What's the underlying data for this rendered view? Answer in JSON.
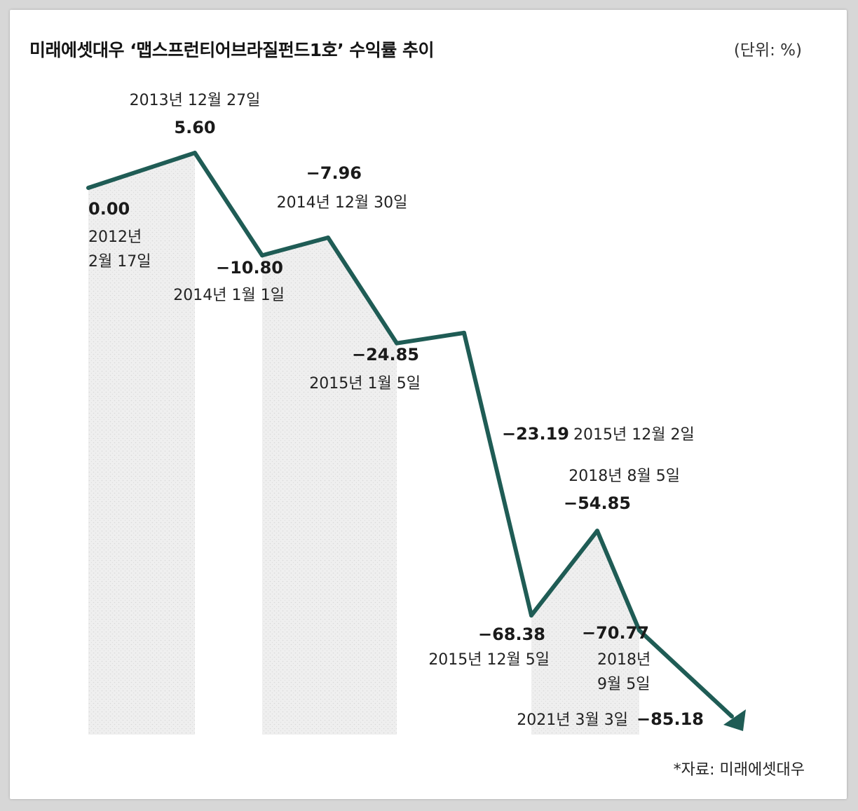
{
  "title": "미래에셋대우 ‘맵스프런티어브라질펀드1호’ 수익률 추이",
  "unit": "(단위: %)",
  "source": "*자료: 미래에셋대우",
  "colors": {
    "line": "#1f5c55",
    "fill": "#eeeeee"
  },
  "chart_data": {
    "type": "line",
    "ylabel": "",
    "points": [
      {
        "date": "2012년 2월 17일",
        "value": 0.0,
        "value_label": "0.00"
      },
      {
        "date": "2013년 12월 27일",
        "value": 5.6,
        "value_label": "5.60"
      },
      {
        "date": "2014년 1월 1일",
        "value": -10.8,
        "value_label": "−10.80"
      },
      {
        "date": "2014년 12월 30일",
        "value": -7.96,
        "value_label": "−7.96"
      },
      {
        "date": "2015년 1월 5일",
        "value": -24.85,
        "value_label": "−24.85"
      },
      {
        "date": "2015년 12월 2일",
        "value": -23.19,
        "value_label": "−23.19"
      },
      {
        "date": "2015년 12월 5일",
        "value": -68.38,
        "value_label": "−68.38"
      },
      {
        "date": "2018년 8월 5일",
        "value": -54.85,
        "value_label": "−54.85"
      },
      {
        "date": "2018년 9월 5일",
        "value": -70.77,
        "value_label": "−70.77"
      },
      {
        "date": "2021년 3월 3일",
        "value": -85.18,
        "value_label": "−85.18"
      }
    ],
    "shaded_bands": [
      [
        0,
        1
      ],
      [
        2,
        4
      ],
      [
        6,
        8
      ]
    ],
    "ylim": [
      -90,
      10
    ]
  }
}
